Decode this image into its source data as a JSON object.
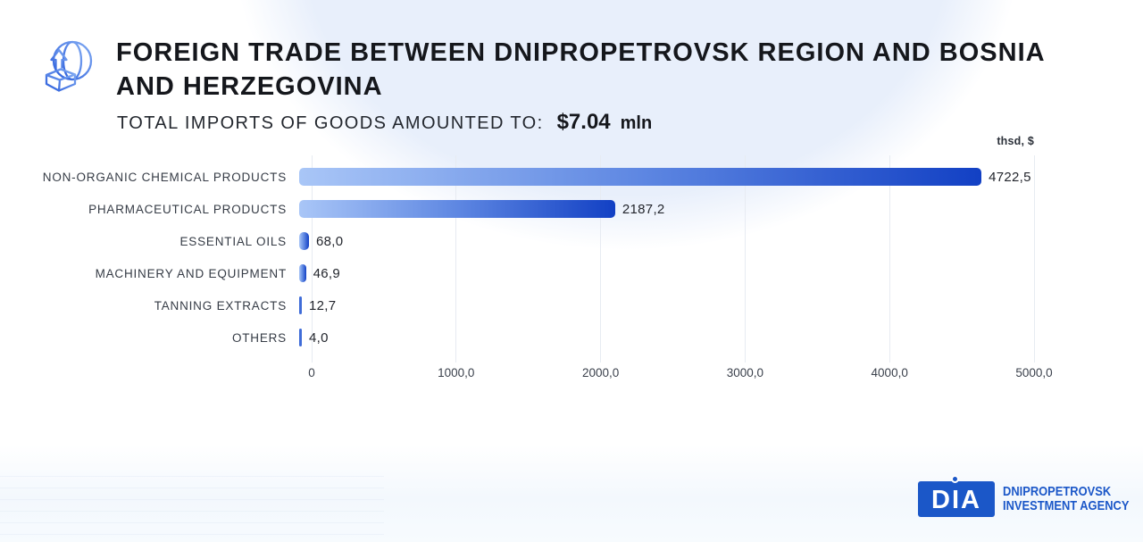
{
  "header": {
    "title_lines": [
      "FOREIGN TRADE BETWEEN DNIPROPETROVSK REGION AND BOSNIA",
      "AND HERZEGOVINA"
    ],
    "subtitle_label": "TOTAL IMPORTS OF GOODS AMOUNTED TO:",
    "amount": "$7.04",
    "amount_unit": "mln",
    "icon": "globe-export-icon"
  },
  "chart_data": {
    "type": "bar",
    "orientation": "horizontal",
    "unit_label": "thsd, $",
    "categories": [
      "NON-ORGANIC CHEMICAL PRODUCTS",
      "PHARMACEUTICAL PRODUCTS",
      "ESSENTIAL OILS",
      "MACHINERY AND EQUIPMENT",
      "TANNING EXTRACTS",
      "OTHERS"
    ],
    "values": [
      4722.5,
      2187.2,
      68.0,
      46.9,
      12.7,
      4.0
    ],
    "value_labels": [
      "4722,5",
      "2187,2",
      "68,0",
      "46,9",
      "12,7",
      "4,0"
    ],
    "xticks": [
      "0",
      "1000,0",
      "2000,0",
      "3000,0",
      "4000,0",
      "5000,0"
    ],
    "xlim": [
      0,
      5000
    ],
    "grid": true,
    "legend": "none",
    "bar_gradient": [
      "#A9C6F7",
      "#5E87E2",
      "#1240C4"
    ],
    "thin_bar_color": "#3F6CD8"
  },
  "footer": {
    "logo_acronym": "DIA",
    "org_line1": "DNIPROPETROVSK",
    "org_line2": "INVESTMENT AGENCY",
    "brand_color": "#1B57C8"
  }
}
